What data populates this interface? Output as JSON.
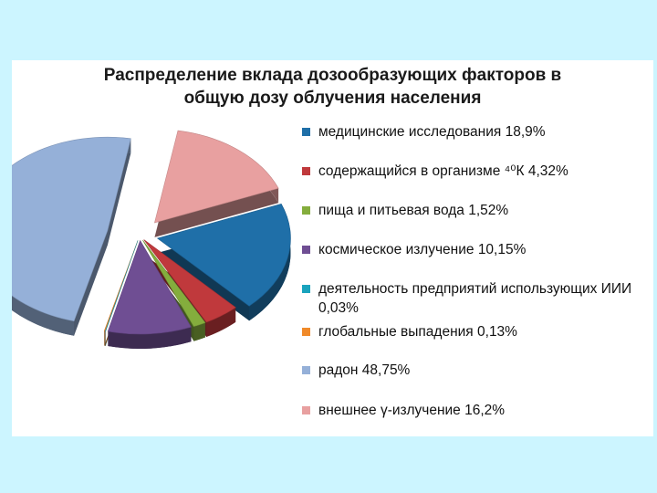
{
  "chart_data": {
    "type": "pie",
    "title_lines": [
      "Распределение вклада дозообразующих факторов в",
      "общую дозу облучения населения"
    ],
    "legend_position": "right",
    "slices": [
      {
        "label": "медицинские исследования 18,9%",
        "value": 18.9,
        "color": "#1f6fa8"
      },
      {
        "label": "содержащийся в организме ⁴⁰К 4,32%",
        "value": 4.32,
        "color": "#c0393c"
      },
      {
        "label": "пища и питьевая вода 1,52%",
        "value": 1.52,
        "color": "#84ad3d"
      },
      {
        "label": "космическое излучение 10,15%",
        "value": 10.15,
        "color": "#6f4e93"
      },
      {
        "label": "деятельность предприятий использующих ИИИ 0,03%",
        "value": 0.03,
        "color": "#1aa3bd"
      },
      {
        "label": "глобальные выпадения 0,13%",
        "value": 0.13,
        "color": "#f08a2a"
      },
      {
        "label": "радон 48,75%",
        "value": 48.75,
        "color": "#95b0d8"
      },
      {
        "label": "внешнее γ-излучение 16,2%",
        "value": 16.2,
        "color": "#e8a0a0"
      }
    ]
  }
}
